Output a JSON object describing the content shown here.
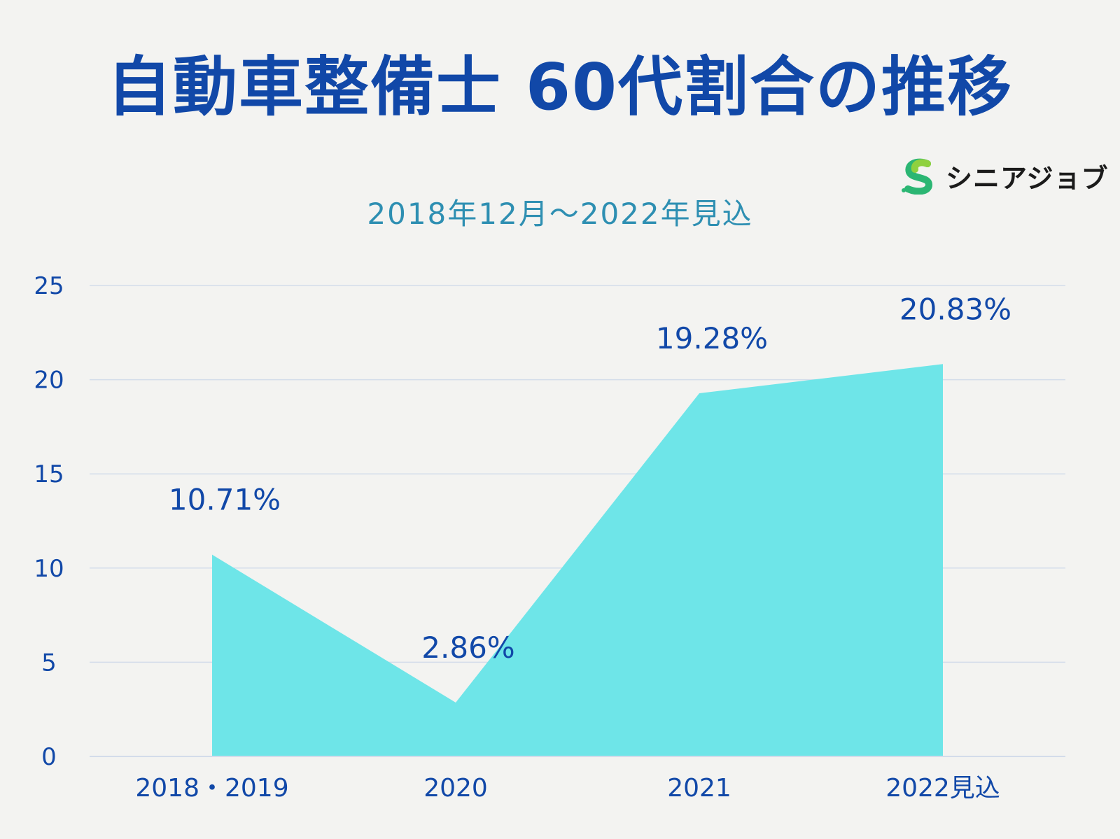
{
  "title": "自動車整備士 60代割合の推移",
  "subtitle": "2018年12月～2022年見込",
  "logo": {
    "text": "シニアジョブ",
    "icon": "s-logo-mark"
  },
  "colors": {
    "title": "#1148a8",
    "subtitle": "#2e8fb2",
    "area": "#6ee5e8",
    "grid": "#d3dcea"
  },
  "chart_data": {
    "type": "area",
    "categories": [
      "2018・2019",
      "2020",
      "2021",
      "2022見込"
    ],
    "values": [
      10.71,
      2.86,
      19.28,
      20.83
    ],
    "data_labels": [
      "10.71%",
      "2.86%",
      "19.28%",
      "20.83%"
    ],
    "yticks": [
      "0",
      "5",
      "10",
      "15",
      "20",
      "25"
    ],
    "ylim": [
      0,
      25
    ],
    "grid": true
  }
}
